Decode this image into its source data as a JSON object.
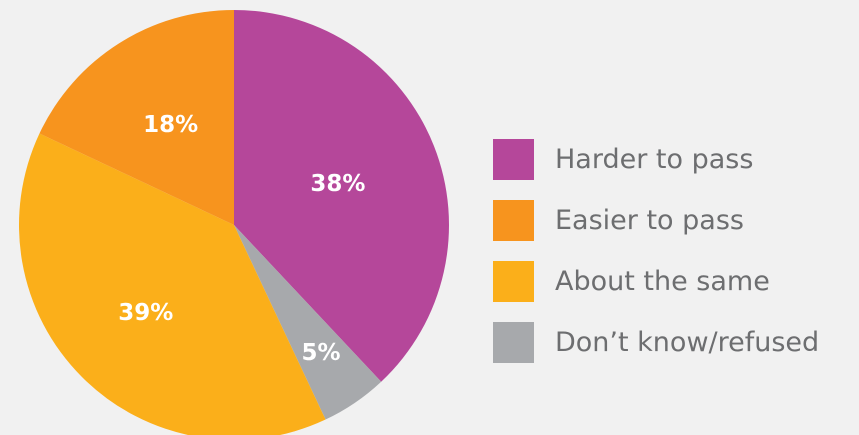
{
  "chart_data": {
    "type": "pie",
    "title": "",
    "slices": [
      {
        "label": "Harder to pass",
        "value": 38,
        "display": "38%",
        "color": "#b5479a"
      },
      {
        "label": "Don’t know/refused",
        "value": 5,
        "display": "5%",
        "color": "#a7a9ac"
      },
      {
        "label": "About the same",
        "value": 39,
        "display": "39%",
        "color": "#fbaf1a"
      },
      {
        "label": "Easier to pass",
        "value": 18,
        "display": "18%",
        "color": "#f7941e"
      }
    ],
    "legend_order": [
      "Harder to pass",
      "Easier to pass",
      "About the same",
      "Don’t know/refused"
    ],
    "legend_placement": "right",
    "start_direction": "clockwise from top"
  }
}
